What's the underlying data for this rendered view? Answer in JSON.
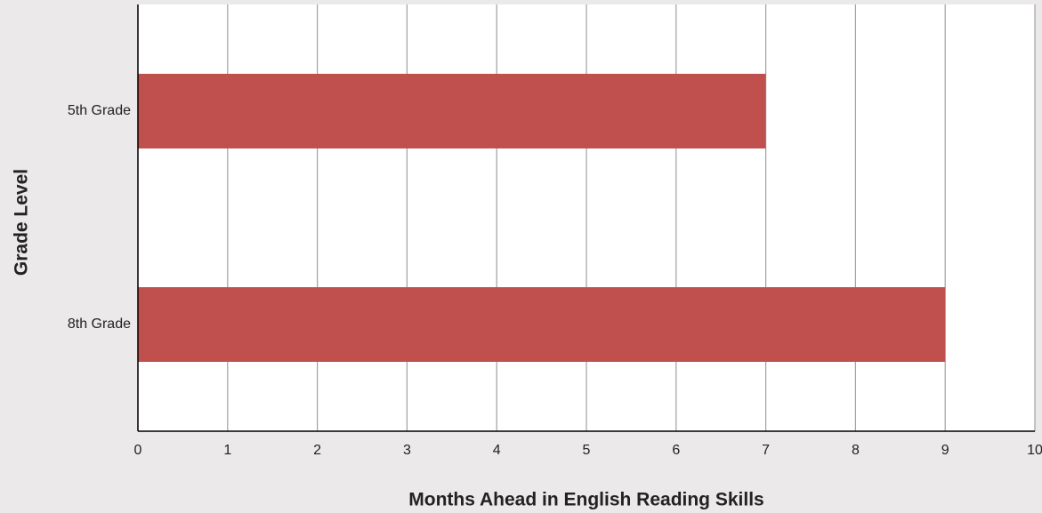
{
  "chart_data": {
    "type": "bar",
    "orientation": "horizontal",
    "x_label": "Months Ahead in English Reading Skills",
    "y_label": "Grade Level",
    "categories": [
      "5th Grade",
      "8th Grade"
    ],
    "values": [
      7,
      9
    ],
    "color": "#c0504d",
    "xlim": [
      0,
      10
    ],
    "xticks": [
      0,
      1,
      2,
      3,
      4,
      5,
      6,
      7,
      8,
      9,
      10
    ],
    "grid": true
  }
}
